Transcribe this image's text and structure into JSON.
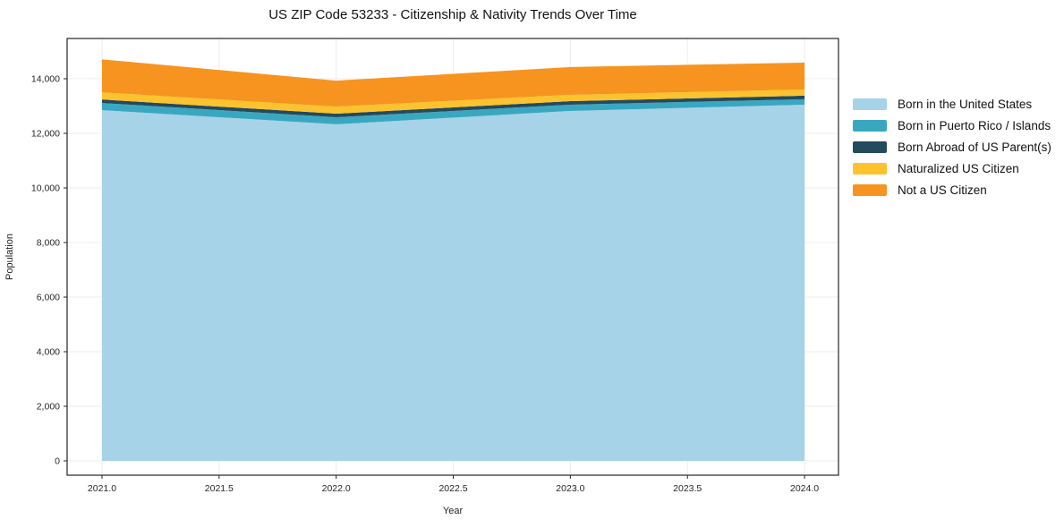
{
  "chart_data": {
    "type": "area",
    "stacked": true,
    "title": "US ZIP Code 53233 - Citizenship & Nativity Trends Over Time",
    "xlabel": "Year",
    "ylabel": "Population",
    "x": [
      2021,
      2022,
      2023,
      2024
    ],
    "series": [
      {
        "name": "Born in the United States",
        "color": "#a6d3e8",
        "values": [
          12850,
          12330,
          12820,
          13050
        ]
      },
      {
        "name": "Born in Puerto Rico / Islands",
        "color": "#3aa7c0",
        "values": [
          260,
          260,
          230,
          200
        ]
      },
      {
        "name": "Born Abroad of US Parent(s)",
        "color": "#234a5d",
        "values": [
          130,
          130,
          130,
          130
        ]
      },
      {
        "name": "Naturalized US Citizen",
        "color": "#fcc32f",
        "values": [
          260,
          260,
          230,
          230
        ]
      },
      {
        "name": "Not a US Citizen",
        "color": "#f79420",
        "values": [
          1210,
          950,
          1020,
          980
        ]
      }
    ],
    "totals": [
      14710,
      13930,
      14430,
      14590
    ],
    "xlim": [
      2020.851,
      2024.145
    ],
    "ylim": [
      -525,
      15475
    ],
    "x_ticks": [
      2021.0,
      2021.5,
      2022.0,
      2022.5,
      2023.0,
      2023.5,
      2024.0
    ],
    "x_tick_labels": [
      "2021.0",
      "2021.5",
      "2022.0",
      "2022.5",
      "2023.0",
      "2023.5",
      "2024.0"
    ],
    "y_ticks": [
      0,
      2000,
      4000,
      6000,
      8000,
      10000,
      12000,
      14000
    ],
    "y_tick_labels": [
      "0",
      "2,000",
      "4,000",
      "6,000",
      "8,000",
      "10,000",
      "12,000",
      "14,000"
    ],
    "grid": true,
    "legend_position": "right-outside"
  }
}
